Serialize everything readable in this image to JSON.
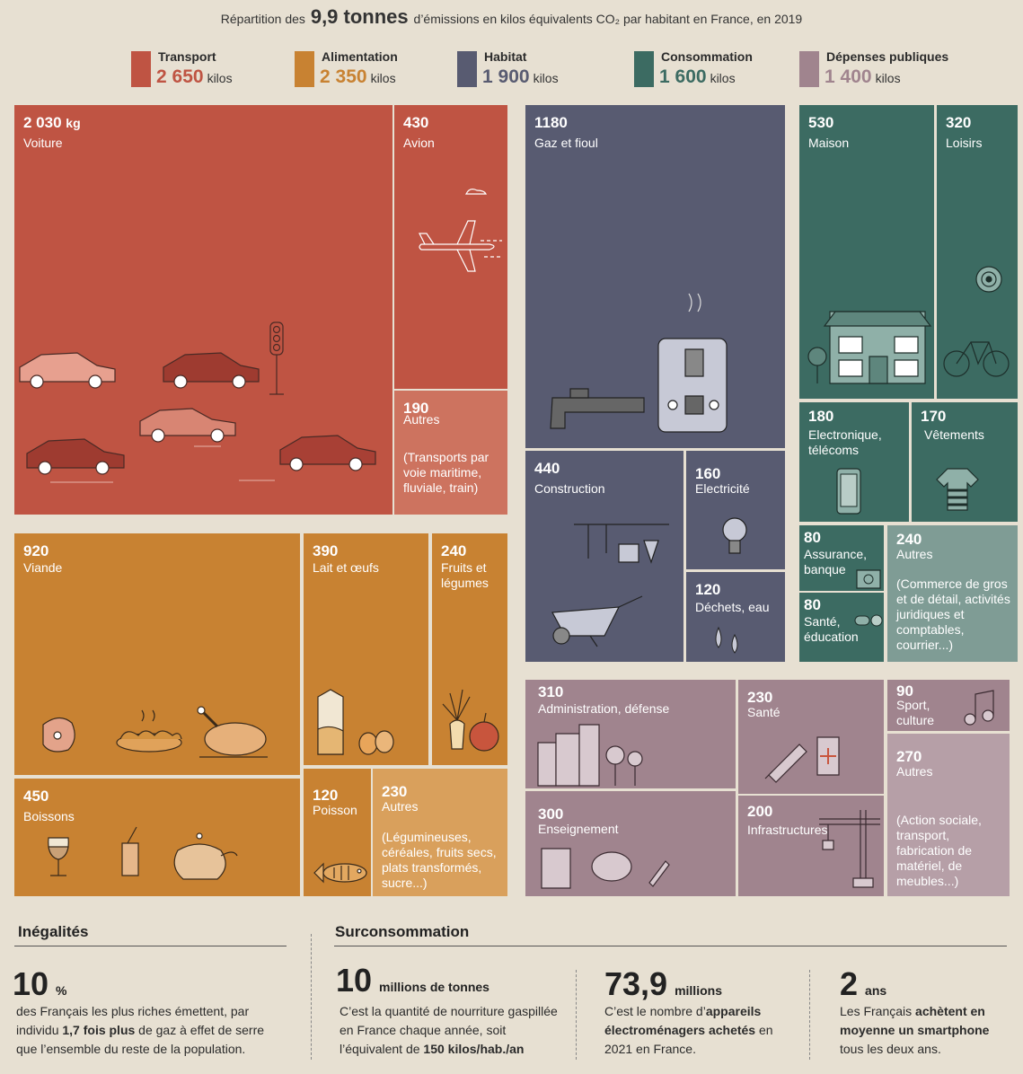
{
  "title": {
    "prefix": "Répartition des",
    "highlight": "9,9 tonnes",
    "suffix": "d’émissions en kilos équivalents CO₂ par habitant en France, en 2019"
  },
  "colors": {
    "transport": "#bf5443",
    "alimentation": "#c88232",
    "habitat": "#585b71",
    "consommation": "#3c6b62",
    "depenses": "#a0848e"
  },
  "legend": [
    {
      "name": "Transport",
      "value": "2 650",
      "unit": "kilos",
      "color": "#bf5443"
    },
    {
      "name": "Alimentation",
      "value": "2 350",
      "unit": "kilos",
      "color": "#c88232"
    },
    {
      "name": "Habitat",
      "value": "1 900",
      "unit": "kilos",
      "color": "#585b71"
    },
    {
      "name": "Consommation",
      "value": "1 600",
      "unit": "kilos",
      "color": "#3c6b62"
    },
    {
      "name": "Dépenses publiques",
      "value": "1 400",
      "unit": "kilos",
      "color": "#a0848e"
    }
  ],
  "cells": {
    "voiture": {
      "value": "2 030",
      "unit": "kg",
      "label": "Voiture",
      "icon": "cars-and-traffic-light-icon"
    },
    "avion": {
      "value": "430",
      "label": "Avion",
      "icon": "airplane-icon"
    },
    "transport_autres": {
      "value": "190",
      "label": "Autres",
      "note": "(Transports par voie maritime, fluviale, train)"
    },
    "viande": {
      "value": "920",
      "label": "Viande",
      "icon": "meat-icon"
    },
    "lait": {
      "value": "390",
      "label": "Lait et œufs",
      "icon": "milk-eggs-icon"
    },
    "fruits": {
      "value": "240",
      "label": "Fruits et légumes",
      "icon": "fruits-vegetables-icon"
    },
    "boissons": {
      "value": "450",
      "label": "Boissons",
      "icon": "drinks-icon"
    },
    "poisson": {
      "value": "120",
      "label": "Poisson",
      "icon": "fish-icon"
    },
    "alim_autres": {
      "value": "230",
      "label": "Autres",
      "note": "(Légumineuses, céréales, fruits secs, plats transformés, sucre...)"
    },
    "gaz": {
      "value": "1180",
      "label": "Gaz et fioul",
      "icon": "boiler-icon"
    },
    "construction": {
      "value": "440",
      "label": "Construction",
      "icon": "tools-wheelbarrow-icon"
    },
    "electricite": {
      "value": "160",
      "label": "Electricité",
      "icon": "light-bulb-icon"
    },
    "dechets": {
      "value": "120",
      "label": "Déchets, eau",
      "icon": "water-drops-icon"
    },
    "maison": {
      "value": "530",
      "label": "Maison",
      "icon": "house-icon"
    },
    "loisirs": {
      "value": "320",
      "label": "Loisirs",
      "icon": "bicycle-target-icon"
    },
    "electronique": {
      "value": "180",
      "label": "Electronique, télécoms",
      "icon": "smartphone-icon"
    },
    "vetements": {
      "value": "170",
      "label": "Vêtements",
      "icon": "tshirt-icon"
    },
    "assurance": {
      "value": "80",
      "label": "Assurance, banque",
      "icon": "safe-icon"
    },
    "sante_educ": {
      "value": "80",
      "label": "Santé, éducation",
      "icon": "pills-icon"
    },
    "conso_autres": {
      "value": "240",
      "label": "Autres",
      "note": "(Commerce de gros et de détail, activités juridiques et comptables, courrier...)"
    },
    "administration": {
      "value": "310",
      "label": "Administration, défense",
      "icon": "city-icon"
    },
    "sante": {
      "value": "230",
      "label": "Santé",
      "icon": "syringe-icon"
    },
    "sport": {
      "value": "90",
      "label": "Sport, culture",
      "icon": "music-note-icon"
    },
    "enseignement": {
      "value": "300",
      "label": "Enseignement",
      "icon": "book-brain-pen-icon"
    },
    "infrastructures": {
      "value": "200",
      "label": "Infrastructures",
      "icon": "crane-icon"
    },
    "depenses_autres": {
      "value": "270",
      "label": "Autres",
      "note": "(Action sociale, transport, fabrication de matériel, de meubles...)"
    }
  },
  "bottom": {
    "inegalites": {
      "heading": "Inégalités",
      "big": "10",
      "unit": "%",
      "p1": "des Français les plus riches émettent, par individu ",
      "p1b": "1,7 fois plus",
      "p2": " de gaz à effet de serre que l’ensemble du reste de la population."
    },
    "surconsommation": {
      "heading": "Surconsommation",
      "stats": [
        {
          "big": "10",
          "unit": "millions de tonnes",
          "t1": "C’est la quantité de nourriture gaspillée en France chaque année, soit l’équivalent de ",
          "b1": "150 kilos/hab./an",
          "t2": ""
        },
        {
          "big": "73,9",
          "unit": "millions",
          "t1": "C’est le nombre d’",
          "b1": "appareils électroménagers achetés",
          "t2": " en 2021 en France."
        },
        {
          "big": "2",
          "unit": "ans",
          "t1": "Les Français ",
          "b1": "achètent en moyenne un smartphone",
          "t2": " tous les deux ans."
        }
      ]
    }
  }
}
